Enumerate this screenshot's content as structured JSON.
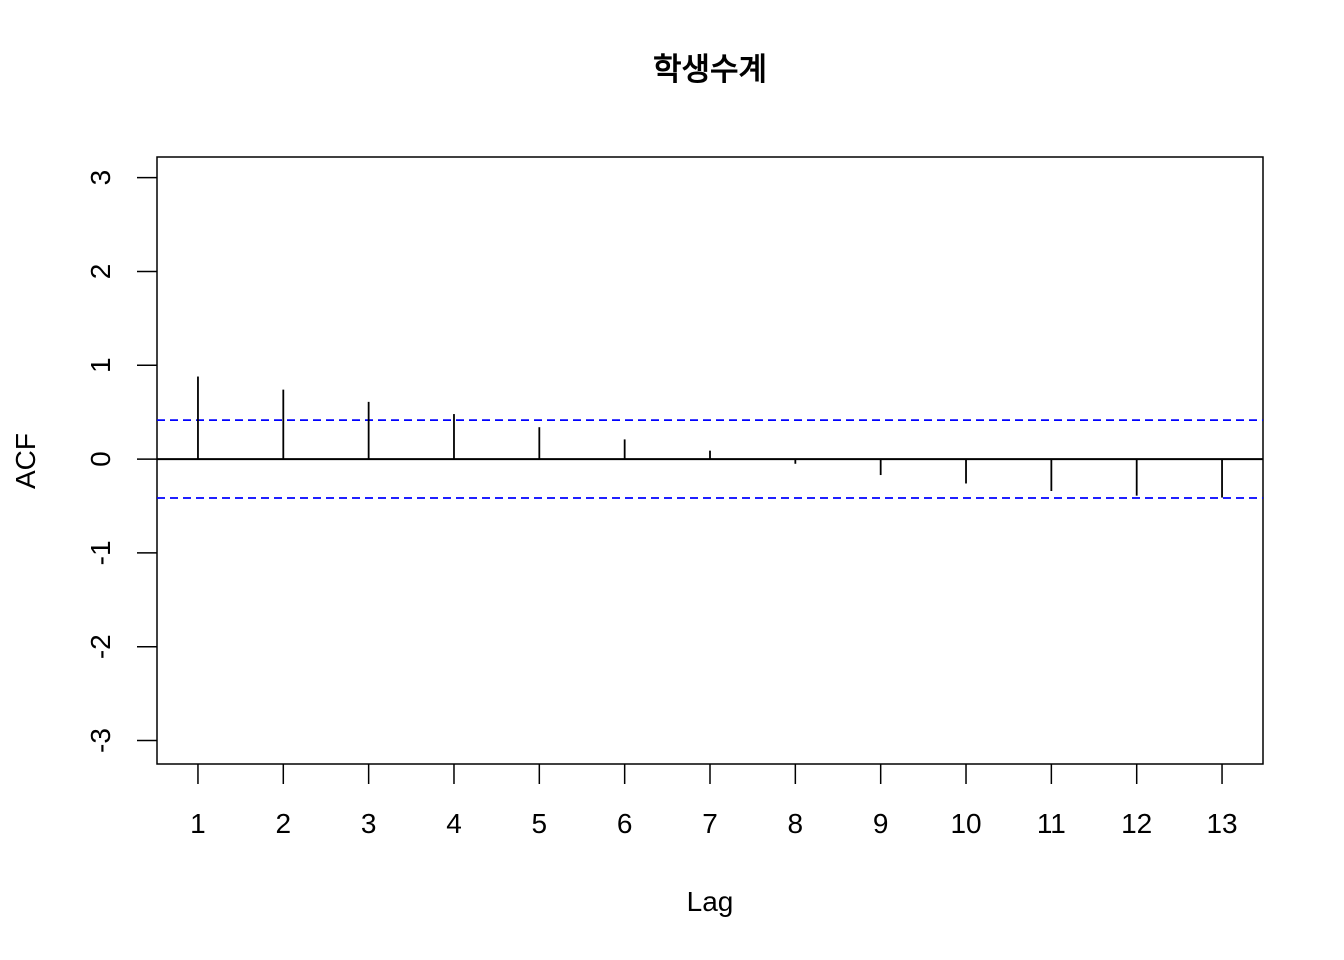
{
  "chart_data": {
    "type": "bar",
    "title": "학생수계",
    "xlabel": "Lag",
    "ylabel": "ACF",
    "x": [
      1,
      2,
      3,
      4,
      5,
      6,
      7,
      8,
      9,
      10,
      11,
      12,
      13
    ],
    "x_tick_labels": [
      "1",
      "2",
      "3",
      "4",
      "5",
      "6",
      "7",
      "8",
      "9",
      "10",
      "11",
      "12",
      "13"
    ],
    "values": [
      0.88,
      0.74,
      0.61,
      0.48,
      0.34,
      0.21,
      0.09,
      -0.05,
      -0.17,
      -0.26,
      -0.34,
      -0.39,
      -0.41
    ],
    "y_ticks": [
      -3,
      -2,
      -1,
      0,
      1,
      2,
      3
    ],
    "y_tick_labels": [
      "-3",
      "-2",
      "-1",
      "0",
      "1",
      "2",
      "3"
    ],
    "ylim": [
      -3.25,
      3.22
    ],
    "xlim": [
      0.52,
      13.48
    ],
    "confidence_band": 0.415,
    "colors": {
      "bars": "#000000",
      "confidence_band": "#0000ff",
      "zero_line": "#000000"
    },
    "grid": false
  }
}
